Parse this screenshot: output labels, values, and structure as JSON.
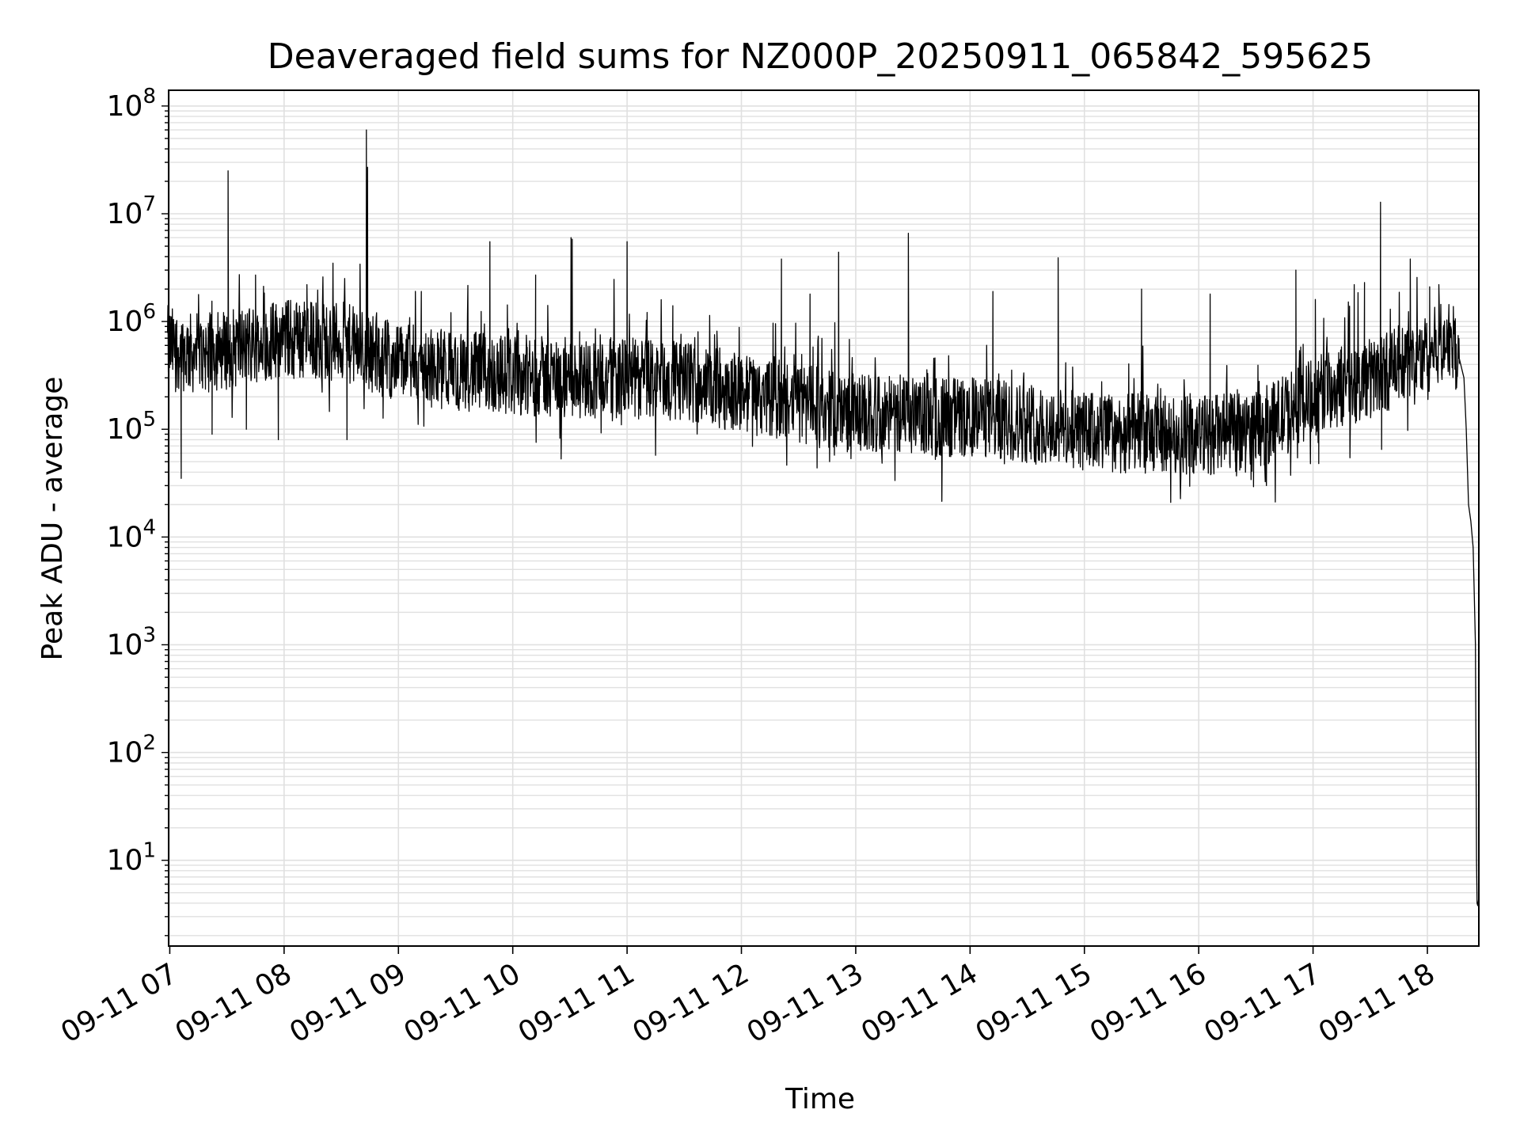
{
  "chart_data": {
    "type": "line",
    "title": "Deaveraged field sums for NZ000P_20250911_065842_595625",
    "xlabel": "Time",
    "ylabel": "Peak ADU - average",
    "yscale": "log",
    "ylim": [
      1.6,
      140000000
    ],
    "xlim_hours": [
      6.99,
      18.45
    ],
    "grid": true,
    "legend": "none",
    "line_color": "#000000",
    "grid_color": "#e0e0e0",
    "x_ticks": [
      {
        "hour": 7,
        "label": "09-11 07"
      },
      {
        "hour": 8,
        "label": "09-11 08"
      },
      {
        "hour": 9,
        "label": "09-11 09"
      },
      {
        "hour": 10,
        "label": "09-11 10"
      },
      {
        "hour": 11,
        "label": "09-11 11"
      },
      {
        "hour": 12,
        "label": "09-11 12"
      },
      {
        "hour": 13,
        "label": "09-11 13"
      },
      {
        "hour": 14,
        "label": "09-11 14"
      },
      {
        "hour": 15,
        "label": "09-11 15"
      },
      {
        "hour": 16,
        "label": "09-11 16"
      },
      {
        "hour": 17,
        "label": "09-11 17"
      },
      {
        "hour": 18,
        "label": "09-11 18"
      }
    ],
    "y_ticks": [
      {
        "exp": 1,
        "base": "10",
        "sup": "1"
      },
      {
        "exp": 2,
        "base": "10",
        "sup": "2"
      },
      {
        "exp": 3,
        "base": "10",
        "sup": "3"
      },
      {
        "exp": 4,
        "base": "10",
        "sup": "4"
      },
      {
        "exp": 5,
        "base": "10",
        "sup": "5"
      },
      {
        "exp": 6,
        "base": "10",
        "sup": "6"
      },
      {
        "exp": 7,
        "base": "10",
        "sup": "7"
      },
      {
        "exp": 8,
        "base": "10",
        "sup": "8"
      }
    ],
    "series": [
      {
        "baseline": [
          [
            6.98,
            600000
          ],
          [
            7.2,
            500000
          ],
          [
            7.5,
            550000
          ],
          [
            8.0,
            700000
          ],
          [
            8.5,
            650000
          ],
          [
            9.0,
            420000
          ],
          [
            9.5,
            350000
          ],
          [
            10.0,
            320000
          ],
          [
            10.5,
            300000
          ],
          [
            11.0,
            300000
          ],
          [
            11.5,
            280000
          ],
          [
            12.0,
            220000
          ],
          [
            12.5,
            170000
          ],
          [
            13.0,
            140000
          ],
          [
            13.5,
            130000
          ],
          [
            14.0,
            130000
          ],
          [
            14.5,
            115000
          ],
          [
            15.0,
            95000
          ],
          [
            15.5,
            90000
          ],
          [
            16.0,
            88000
          ],
          [
            16.5,
            95000
          ],
          [
            17.0,
            200000
          ],
          [
            17.5,
            300000
          ],
          [
            17.9,
            450000
          ],
          [
            18.05,
            550000
          ],
          [
            18.1,
            650000
          ],
          [
            18.2,
            700000
          ],
          [
            18.28,
            450000
          ]
        ],
        "spikes": [
          [
            7.51,
            25000000
          ],
          [
            8.72,
            60000000
          ],
          [
            8.73,
            27000000
          ],
          [
            9.8,
            5500000
          ],
          [
            10.51,
            6000000
          ],
          [
            10.52,
            5800000
          ],
          [
            11.0,
            5500000
          ],
          [
            12.35,
            3800000
          ],
          [
            12.85,
            4400000
          ],
          [
            13.46,
            6600000
          ],
          [
            14.77,
            3900000
          ],
          [
            16.85,
            3000000
          ],
          [
            17.45,
            2300000
          ],
          [
            17.59,
            12800000
          ],
          [
            17.85,
            3800000
          ],
          [
            17.02,
            1600000
          ],
          [
            7.75,
            2700000
          ],
          [
            8.2,
            2200000
          ],
          [
            9.2,
            1900000
          ],
          [
            10.2,
            2700000
          ],
          [
            11.4,
            1400000
          ],
          [
            12.6,
            1800000
          ],
          [
            14.2,
            1900000
          ],
          [
            15.5,
            2000000
          ],
          [
            16.1,
            1800000
          ],
          [
            17.36,
            2200000
          ],
          [
            18.1,
            2200000
          ],
          [
            18.02,
            2100000
          ]
        ],
        "dips": [
          [
            7.1,
            35000
          ],
          [
            7.37,
            90000
          ],
          [
            7.95,
            80000
          ],
          [
            8.55,
            80000
          ],
          [
            7.67,
            100000
          ],
          [
            10.95,
            110000
          ],
          [
            13.6,
            60000
          ],
          [
            14.42,
            55000
          ],
          [
            15.55,
            55000
          ],
          [
            16.32,
            50000
          ],
          [
            16.78,
            60000
          ],
          [
            17.05,
            48000
          ],
          [
            17.6,
            65000
          ]
        ],
        "tail": [
          [
            18.28,
            450000
          ],
          [
            18.32,
            300000
          ],
          [
            18.34,
            100000
          ],
          [
            18.36,
            20000
          ],
          [
            18.38,
            14000
          ],
          [
            18.4,
            8000
          ],
          [
            18.41,
            3000
          ],
          [
            18.42,
            1000
          ],
          [
            18.425,
            100
          ],
          [
            18.43,
            10
          ],
          [
            18.435,
            4
          ],
          [
            18.44,
            3.8
          ],
          [
            18.45,
            4.5
          ]
        ]
      }
    ]
  }
}
